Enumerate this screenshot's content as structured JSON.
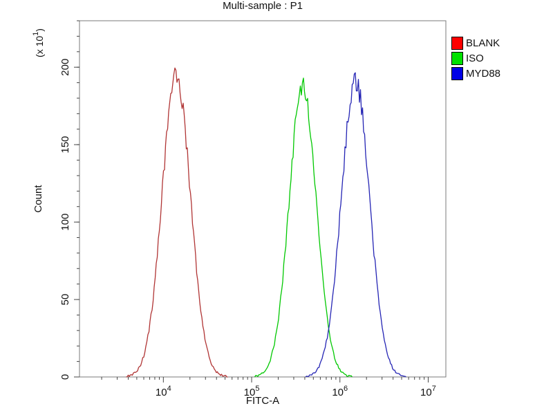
{
  "title": "Multi-sample : P1",
  "axes": {
    "x_label": "FITC-A",
    "y_label": "Count",
    "y_unit_base": "(x 10",
    "y_unit_exp": "1",
    "y_unit_close": ")"
  },
  "legend": [
    {
      "label": "BLANK",
      "color": "#ff0000"
    },
    {
      "label": "ISO",
      "color": "#00e100"
    },
    {
      "label": "MYD88",
      "color": "#0000e6"
    }
  ],
  "chart_data": {
    "type": "area",
    "title": "Multi-sample : P1",
    "xlabel": "FITC-A",
    "ylabel": "Count (x 10^1)",
    "x_scale": "log10",
    "x_range_log10": [
      3.05,
      7.2
    ],
    "x_major_tick_exponents": [
      4,
      5,
      6,
      7
    ],
    "y_range": [
      0,
      230
    ],
    "y_major_ticks": [
      0,
      50,
      100,
      150,
      200
    ],
    "y_minor_tick_step": 10,
    "grid": false,
    "legend_position": "top-right-outside",
    "series": [
      {
        "name": "BLANK",
        "color": "#b03434",
        "peak_x": 14000,
        "peak_count": 195,
        "sigma_log10": 0.16
      },
      {
        "name": "ISO",
        "color": "#00c800",
        "peak_x": 380000,
        "peak_count": 188,
        "sigma_log10": 0.155
      },
      {
        "name": "MYD88",
        "color": "#2424b4",
        "peak_x": 1500000,
        "peak_count": 191,
        "sigma_log10": 0.16
      }
    ]
  }
}
